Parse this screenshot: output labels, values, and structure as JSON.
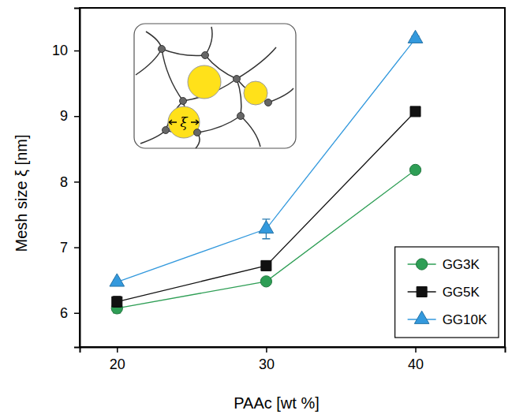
{
  "chart_data": {
    "type": "line",
    "x_label": "PAAc [wt %]",
    "y_label": "Mesh size ξ [nm]",
    "annotations": [
      "ξ"
    ],
    "x": [
      20,
      30,
      40
    ],
    "series": [
      {
        "name": "GG3K",
        "color": "#2e9e55",
        "marker": "circle",
        "line_style": "solid",
        "values": [
          6.07,
          6.48,
          8.18
        ],
        "errors": [
          0.07,
          0.03,
          0.03
        ]
      },
      {
        "name": "GG5K",
        "color": "#111111",
        "marker": "square",
        "line_style": "solid",
        "values": [
          6.17,
          6.72,
          9.07
        ],
        "errors": [
          0.08,
          0.05,
          0.05
        ]
      },
      {
        "name": "GG10K",
        "color": "#3399dd",
        "marker": "triangle",
        "line_style": "solid",
        "values": [
          6.47,
          7.28,
          10.18
        ],
        "errors": [
          0.03,
          0.15,
          0.04
        ]
      }
    ],
    "xlim": [
      17.5,
      46
    ],
    "ylim": [
      5.48,
      10.65
    ],
    "xticks": [
      20,
      30,
      40
    ],
    "yticks": [
      6,
      7,
      8,
      9,
      10
    ],
    "grid": false,
    "legend": "lower right"
  }
}
